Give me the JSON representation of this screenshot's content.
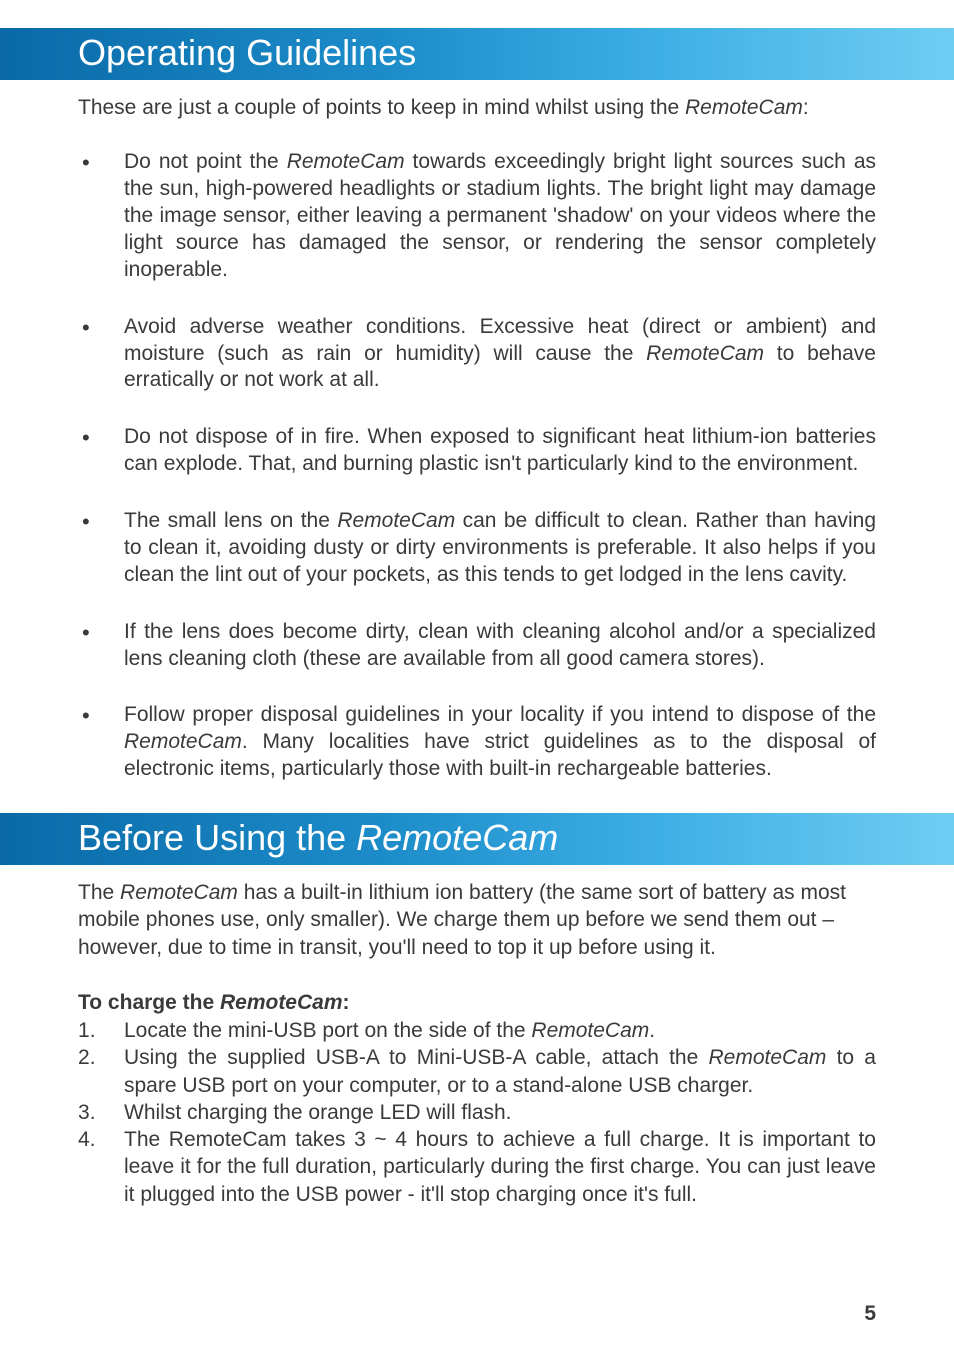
{
  "section1": {
    "title": "Operating Guidelines",
    "intro_pre": "These are just a couple of points to keep in mind whilst using the ",
    "intro_em": "RemoteCam",
    "intro_post": ":",
    "bullets": [
      {
        "pre": "Do not point the ",
        "em": "RemoteCam",
        "post": " towards exceedingly bright light sources such as the sun, high-powered headlights or stadium lights. The bright light may damage the image sensor, either leaving a permanent 'shadow' on your videos where the light source has damaged the sensor, or rendering the sensor completely inoperable."
      },
      {
        "pre": "Avoid adverse weather conditions. Excessive heat (direct or ambient) and moisture (such as rain or humidity) will cause the ",
        "em": "RemoteCam",
        "post": " to behave erratically or not work at all."
      },
      {
        "pre": "Do not dispose of in fire. When exposed to significant heat lithium-ion batteries can explode. That, and burning plastic isn't particularly kind to the environment.",
        "em": "",
        "post": ""
      },
      {
        "pre": "The small lens on the ",
        "em": "RemoteCam",
        "post": " can be difficult to clean. Rather than having to clean it, avoiding dusty or dirty environments is preferable. It also helps if you clean the lint out of your pockets, as this tends to get lodged in the lens cavity."
      },
      {
        "pre": "If the lens does become dirty, clean with cleaning alcohol and/or a specialized lens cleaning cloth (these are available from all good camera stores).",
        "em": "",
        "post": ""
      },
      {
        "pre": "Follow proper disposal guidelines in your locality if you intend to dispose of the ",
        "em": "RemoteCam",
        "post": ". Many localities have strict guidelines as to the disposal of electronic items, particularly those with built-in rechargeable batteries."
      }
    ]
  },
  "section2": {
    "title_pre": "Before Using the ",
    "title_em": "RemoteCam",
    "body_pre": "The ",
    "body_em": "RemoteCam",
    "body_post": " has a built-in lithium ion battery (the same sort of battery as most mobile phones use, only smaller). We charge them up before we send them out – however, due to time in transit, you'll need to top it up before using it.",
    "charge_heading_pre": "To charge the ",
    "charge_heading_em": "RemoteCam",
    "charge_heading_post": ":",
    "steps": [
      {
        "pre": "Locate the mini-USB port on the side of the ",
        "em": "RemoteCam",
        "post": "."
      },
      {
        "pre": "Using the supplied USB-A to Mini-USB-A cable, attach the ",
        "em": "RemoteCam",
        "post": " to a spare USB port on your computer, or to a stand-alone USB charger."
      },
      {
        "pre": "Whilst charging the orange LED will ﬂash.",
        "em": "",
        "post": ""
      },
      {
        "pre": "The RemoteCam takes 3 ~ 4 hours to achieve a full charge. It is important to leave it for the full duration, particularly during the first charge. You can just leave it plugged into the USB power - it'll stop charging once it's full.",
        "em": "",
        "post": ""
      }
    ]
  },
  "page_number": "5",
  "colors": {
    "header_gradient_start": "#0a6aa8",
    "header_gradient_end": "#6fcdf2",
    "text": "#3a3a3a",
    "background": "#ffffff"
  },
  "typography": {
    "header_fontsize": 36,
    "body_fontsize": 21
  }
}
